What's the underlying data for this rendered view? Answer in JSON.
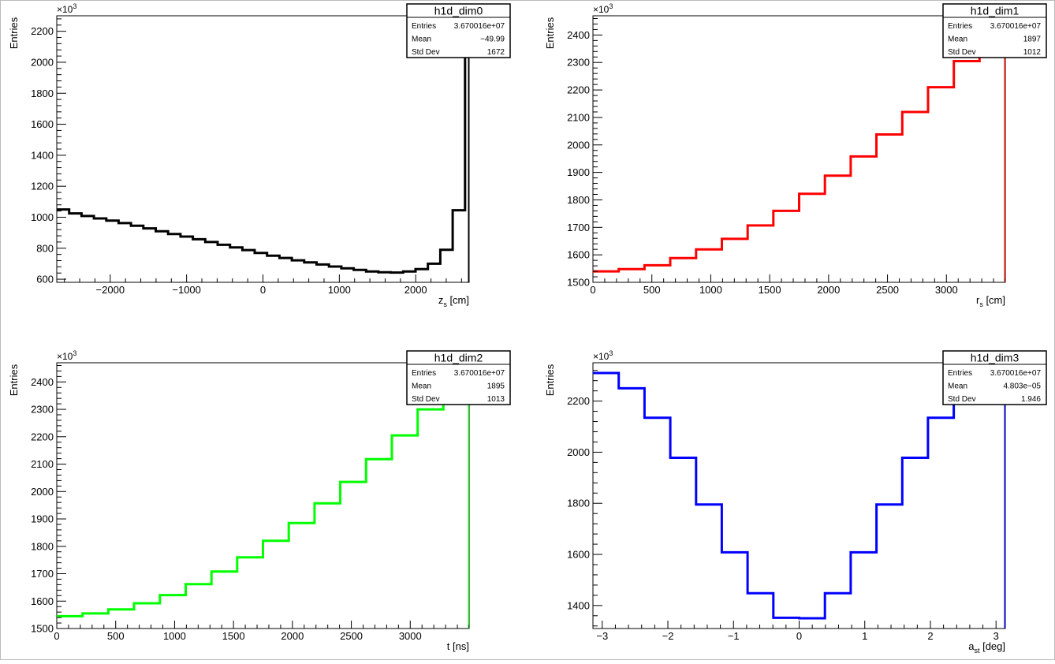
{
  "chart_data": [
    {
      "type": "step",
      "title": "",
      "xlabel": "z",
      "xlabel_sub": "s",
      "xlabel_unit": " [cm]",
      "ylabel": "Entries",
      "y_exponent_base": "×10",
      "y_exponent": "3",
      "color": "#000000",
      "xlim": [
        -2700,
        2700
      ],
      "ylim": [
        580,
        2300
      ],
      "xticks": [
        -2000,
        -1000,
        0,
        1000,
        2000
      ],
      "xtick_labels": [
        "−2000",
        "−1000",
        "0",
        "1000",
        "2000"
      ],
      "yticks": [
        600,
        800,
        1000,
        1200,
        1400,
        1600,
        1800,
        2000,
        2200
      ],
      "ytick_labels": [
        "600",
        "800",
        "1000",
        "1200",
        "1400",
        "1600",
        "1800",
        "2000",
        "2200"
      ],
      "bin_edges": [
        -2700,
        -2538,
        -2376,
        -2214,
        -2052,
        -1890,
        -1728,
        -1566,
        -1404,
        -1242,
        -1080,
        -918,
        -756,
        -594,
        -432,
        -270,
        -108,
        54,
        216,
        378,
        540,
        702,
        864,
        1026,
        1188,
        1350,
        1512,
        1674,
        1836,
        1998,
        2160,
        2322,
        2484,
        2646,
        2700
      ],
      "values": [
        1050,
        1025,
        1008,
        992,
        978,
        962,
        945,
        928,
        910,
        892,
        875,
        858,
        840,
        822,
        805,
        788,
        770,
        752,
        737,
        722,
        708,
        695,
        682,
        670,
        660,
        650,
        645,
        643,
        650,
        665,
        700,
        790,
        1045,
        2250
      ],
      "stats": {
        "name": "h1d_dim0",
        "rows": [
          {
            "label": "Entries",
            "value": "3.670016e+07"
          },
          {
            "label": "Mean",
            "value": "−49.99"
          },
          {
            "label": "Std Dev",
            "value": "1672"
          }
        ]
      }
    },
    {
      "type": "step",
      "title": "",
      "xlabel": "r",
      "xlabel_sub": "s",
      "xlabel_unit": " [cm]",
      "ylabel": "Entries",
      "y_exponent_base": "×10",
      "y_exponent": "3",
      "color": "#ff0000",
      "xlim": [
        0,
        3500
      ],
      "ylim": [
        1500,
        2470
      ],
      "xticks": [
        0,
        500,
        1000,
        1500,
        2000,
        2500,
        3000
      ],
      "xtick_labels": [
        "0",
        "500",
        "1000",
        "1500",
        "2000",
        "2500",
        "3000"
      ],
      "yticks": [
        1500,
        1600,
        1700,
        1800,
        1900,
        2000,
        2100,
        2200,
        2300,
        2400
      ],
      "ytick_labels": [
        "1500",
        "1600",
        "1700",
        "1800",
        "1900",
        "2000",
        "2100",
        "2200",
        "2300",
        "2400"
      ],
      "bin_edges": [
        0,
        219,
        438,
        656,
        875,
        1094,
        1313,
        1531,
        1750,
        1969,
        2188,
        2406,
        2625,
        2844,
        3063,
        3281,
        3500
      ],
      "values": [
        1540,
        1548,
        1562,
        1588,
        1620,
        1658,
        1707,
        1760,
        1822,
        1888,
        1958,
        2038,
        2120,
        2210,
        2305,
        2420
      ],
      "stats": {
        "name": "h1d_dim1",
        "rows": [
          {
            "label": "Entries",
            "value": "3.670016e+07"
          },
          {
            "label": "Mean",
            "value": "1897"
          },
          {
            "label": "Std Dev",
            "value": "1012"
          }
        ]
      }
    },
    {
      "type": "step",
      "title": "",
      "xlabel": "t",
      "xlabel_sub": "",
      "xlabel_unit": " [ns]",
      "ylabel": "Entries",
      "y_exponent_base": "×10",
      "y_exponent": "3",
      "color": "#00ff00",
      "xlim": [
        0,
        3500
      ],
      "ylim": [
        1500,
        2470
      ],
      "xticks": [
        0,
        500,
        1000,
        1500,
        2000,
        2500,
        3000
      ],
      "xtick_labels": [
        "0",
        "500",
        "1000",
        "1500",
        "2000",
        "2500",
        "3000"
      ],
      "yticks": [
        1500,
        1600,
        1700,
        1800,
        1900,
        2000,
        2100,
        2200,
        2300,
        2400
      ],
      "ytick_labels": [
        "1500",
        "1600",
        "1700",
        "1800",
        "1900",
        "2000",
        "2100",
        "2200",
        "2300",
        "2400"
      ],
      "bin_edges": [
        0,
        219,
        438,
        656,
        875,
        1094,
        1313,
        1531,
        1750,
        1969,
        2188,
        2406,
        2625,
        2844,
        3063,
        3281,
        3500
      ],
      "values": [
        1545,
        1555,
        1570,
        1592,
        1622,
        1662,
        1708,
        1760,
        1820,
        1885,
        1957,
        2035,
        2118,
        2205,
        2300,
        2405
      ],
      "stats": {
        "name": "h1d_dim2",
        "rows": [
          {
            "label": "Entries",
            "value": "3.670016e+07"
          },
          {
            "label": "Mean",
            "value": "1895"
          },
          {
            "label": "Std Dev",
            "value": "1013"
          }
        ]
      }
    },
    {
      "type": "step",
      "title": "",
      "xlabel": "a",
      "xlabel_sub": "st",
      "xlabel_unit": " [deg]",
      "ylabel": "Entries",
      "y_exponent_base": "×10",
      "y_exponent": "3",
      "color": "#0000ff",
      "xlim": [
        -3.1416,
        3.1416
      ],
      "ylim": [
        1310,
        2350
      ],
      "xticks": [
        -3,
        -2,
        -1,
        0,
        1,
        2,
        3
      ],
      "xtick_labels": [
        "−3",
        "−2",
        "−1",
        "0",
        "1",
        "2",
        "3"
      ],
      "yticks": [
        1400,
        1600,
        1800,
        2000,
        2200
      ],
      "ytick_labels": [
        "1400",
        "1600",
        "1800",
        "2000",
        "2200"
      ],
      "bin_edges": [
        -3.1416,
        -2.7489,
        -2.3562,
        -1.9635,
        -1.5708,
        -1.1781,
        -0.7854,
        -0.3927,
        0,
        0.3927,
        0.7854,
        1.1781,
        1.5708,
        1.9635,
        2.3562,
        2.7489,
        3.1416
      ],
      "values": [
        2310,
        2250,
        2135,
        1978,
        1795,
        1608,
        1448,
        1352,
        1350,
        1448,
        1608,
        1795,
        1978,
        2135,
        2250,
        2310
      ],
      "stats": {
        "name": "h1d_dim3",
        "rows": [
          {
            "label": "Entries",
            "value": "3.670016e+07"
          },
          {
            "label": "Mean",
            "value": "4.803e−05"
          },
          {
            "label": "Std Dev",
            "value": "1.946"
          }
        ]
      }
    }
  ]
}
